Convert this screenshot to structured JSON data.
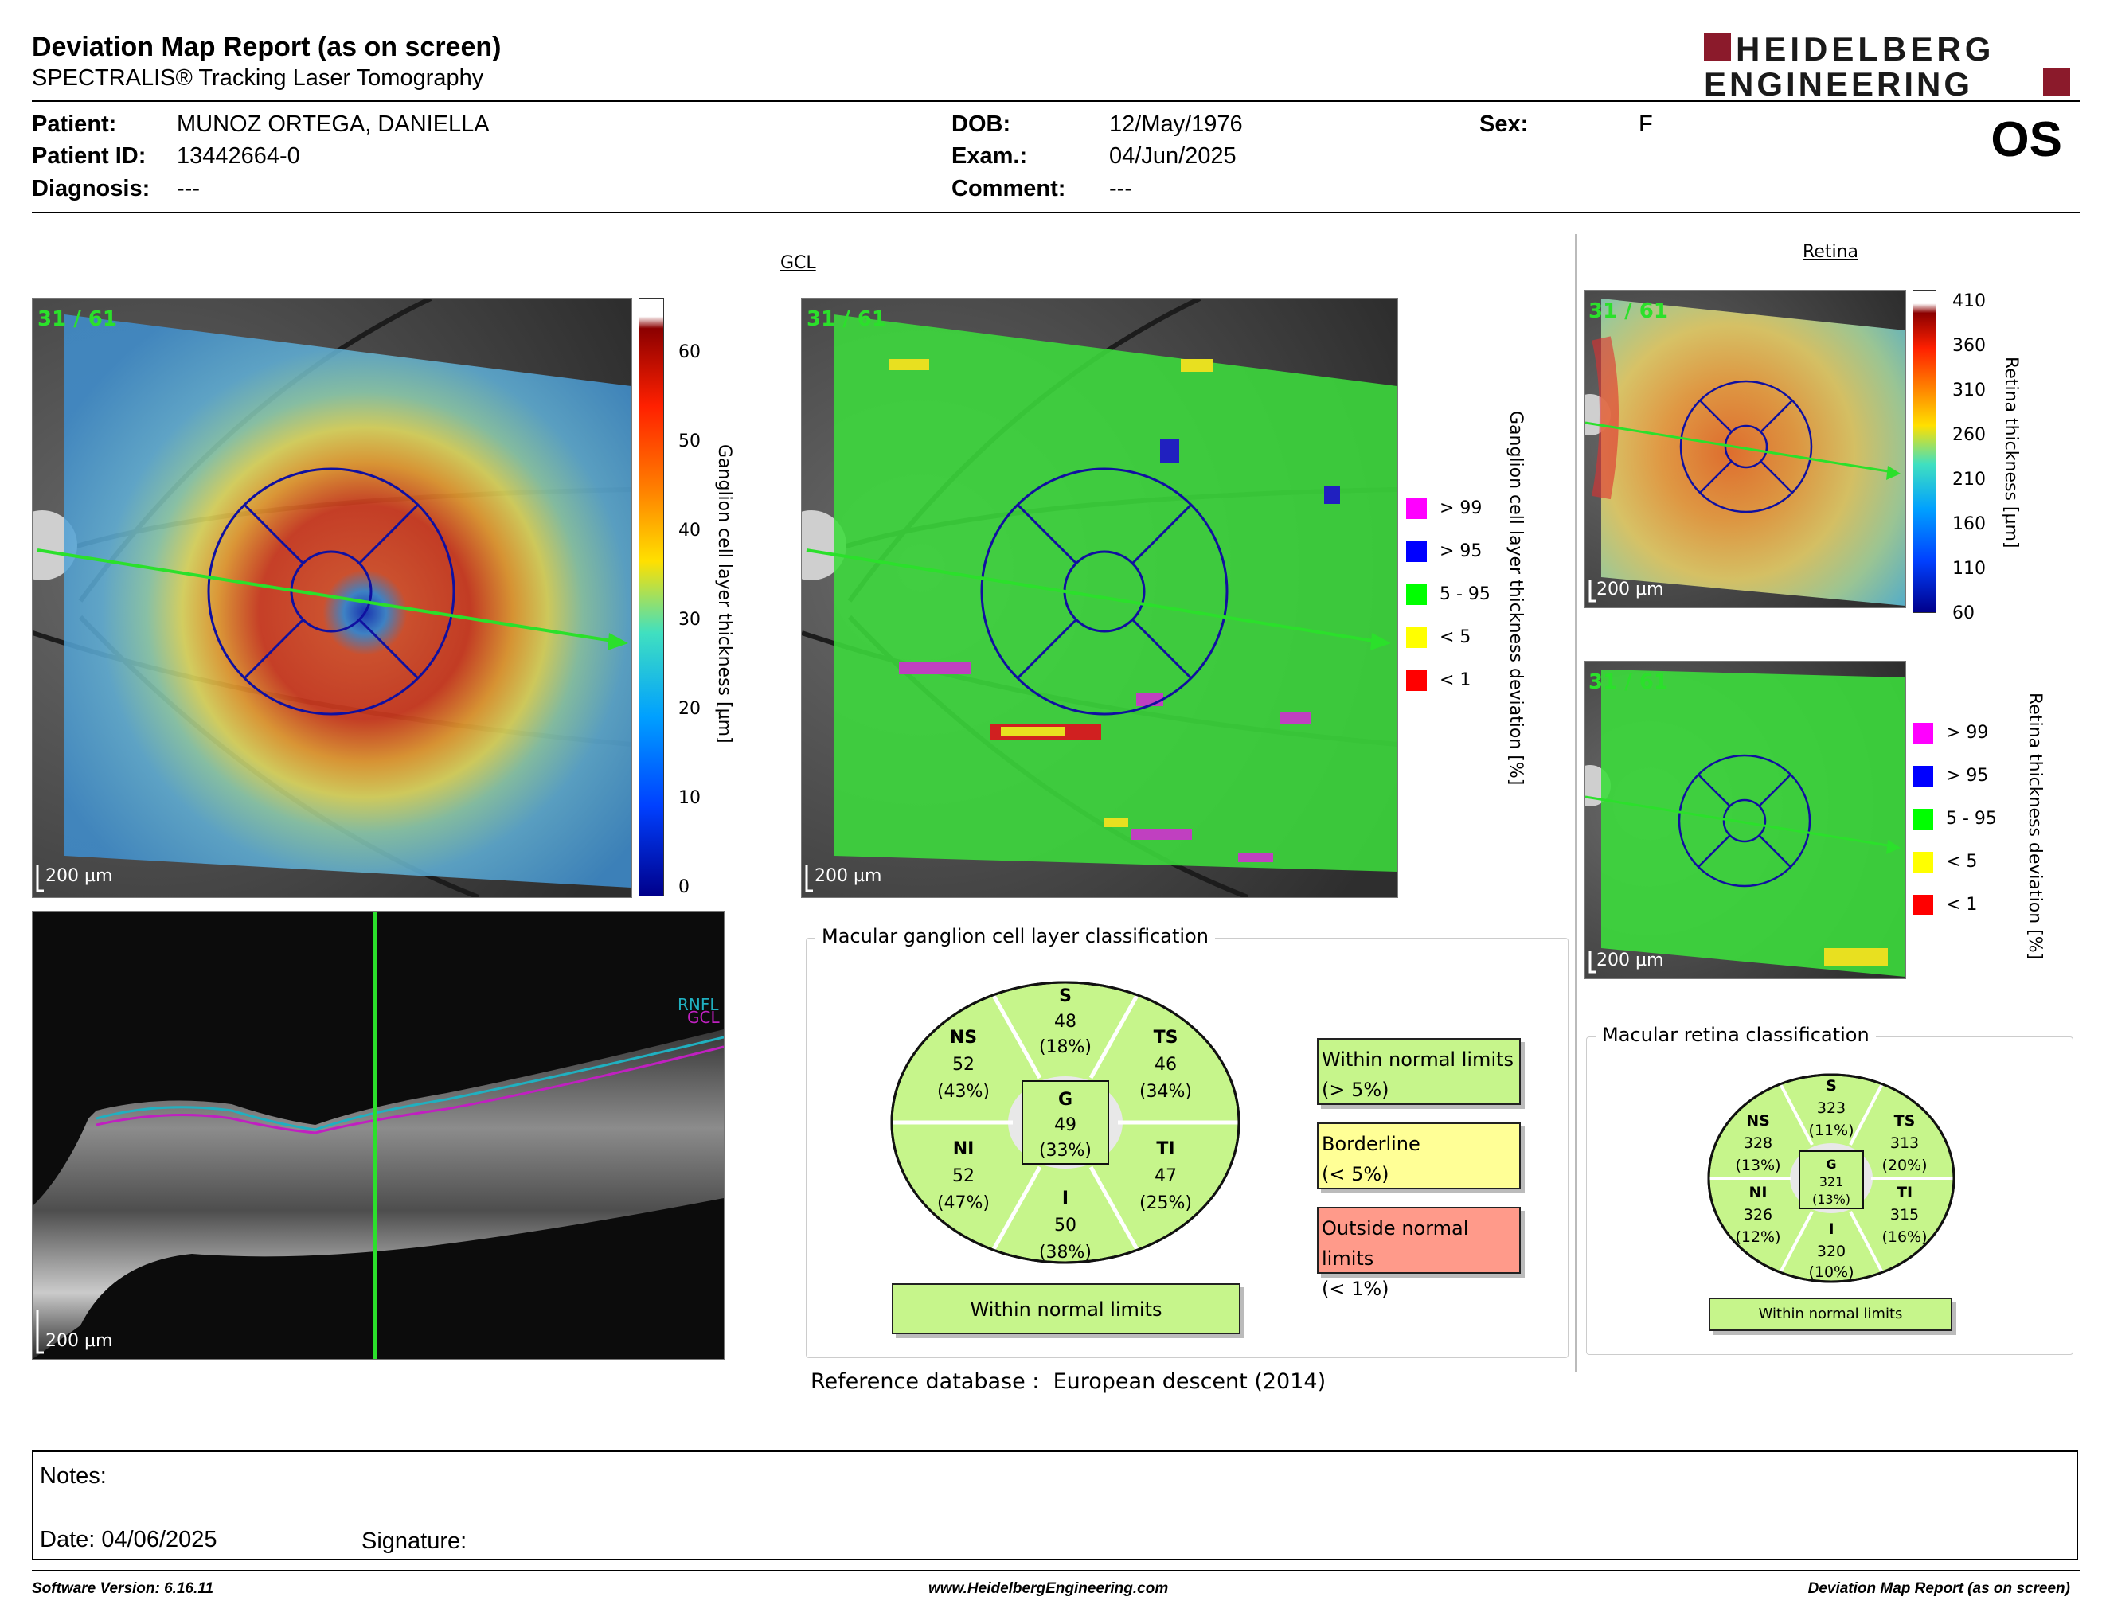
{
  "header": {
    "title": "Deviation Map Report (as on screen)",
    "subtitle": "SPECTRALIS® Tracking Laser Tomography",
    "logo_line1": "HEIDELBERG",
    "logo_line2": "ENGINEERING",
    "eye": "OS"
  },
  "patient": {
    "name_label": "Patient:",
    "name": "MUNOZ ORTEGA, DANIELLA",
    "id_label": "Patient ID:",
    "id": "13442664-0",
    "diagnosis_label": "Diagnosis:",
    "diagnosis": "---",
    "dob_label": "DOB:",
    "dob": "12/May/1976",
    "exam_label": "Exam.:",
    "exam": "04/Jun/2025",
    "comment_label": "Comment:",
    "comment": "---",
    "sex_label": "Sex:",
    "sex": "F"
  },
  "gcl": {
    "section_title": "GCL",
    "scan_label": "31 / 61",
    "scale_label": "200 µm",
    "thickness_axis_label": "Ganglion cell layer thickness [µm]",
    "thickness_ticks": [
      "60",
      "50",
      "40",
      "30",
      "20",
      "10",
      "0"
    ],
    "deviation_axis_label": "Ganglion cell layer thickness deviation [%]",
    "legend": [
      {
        "label": "> 99",
        "color": "#ff00ff"
      },
      {
        "label": "> 95",
        "color": "#0000ff"
      },
      {
        "label": "5 - 95",
        "color": "#00ff00"
      },
      {
        "label": "< 5",
        "color": "#ffff00"
      },
      {
        "label": "< 1",
        "color": "#ff0000"
      }
    ],
    "bscan_scale_label": "200 µm",
    "bscan_layer_labels": [
      "RNFL",
      "GCL"
    ]
  },
  "retina": {
    "section_title": "Retina",
    "scan_label": "31 / 61",
    "scale_label": "200 µm",
    "thickness_axis_label": "Retina thickness [µm]",
    "thickness_ticks": [
      "410",
      "360",
      "310",
      "260",
      "210",
      "160",
      "110",
      "60"
    ],
    "deviation_axis_label": "Retina thickness deviation [%]",
    "legend": [
      {
        "label": "> 99",
        "color": "#ff00ff"
      },
      {
        "label": "> 95",
        "color": "#0000ff"
      },
      {
        "label": "5 - 95",
        "color": "#00ff00"
      },
      {
        "label": "< 5",
        "color": "#ffff00"
      },
      {
        "label": "< 1",
        "color": "#ff0000"
      }
    ]
  },
  "gcl_classification": {
    "title": "Macular ganglion cell layer classification",
    "sectors": {
      "S": {
        "name": "S",
        "value": "48",
        "pct": "(18%)"
      },
      "NS": {
        "name": "NS",
        "value": "52",
        "pct": "(43%)"
      },
      "TS": {
        "name": "TS",
        "value": "46",
        "pct": "(34%)"
      },
      "G": {
        "name": "G",
        "value": "49",
        "pct": "(33%)"
      },
      "NI": {
        "name": "NI",
        "value": "52",
        "pct": "(47%)"
      },
      "TI": {
        "name": "TI",
        "value": "47",
        "pct": "(25%)"
      },
      "I": {
        "name": "I",
        "value": "50",
        "pct": "(38%)"
      }
    },
    "result": "Within normal limits",
    "legend": [
      {
        "line1": "Within normal limits",
        "line2": "(> 5%)",
        "color": "#c6f58b"
      },
      {
        "line1": "Borderline",
        "line2": "(< 5%)",
        "color": "#ffff96"
      },
      {
        "line1": "Outside normal limits",
        "line2": "(< 1%)",
        "color": "#ff9a8a"
      }
    ],
    "reference_label": "Reference database :",
    "reference_value": "European descent (2014)"
  },
  "retina_classification": {
    "title": "Macular retina classification",
    "sectors": {
      "S": {
        "name": "S",
        "value": "323",
        "pct": "(11%)"
      },
      "NS": {
        "name": "NS",
        "value": "328",
        "pct": "(13%)"
      },
      "TS": {
        "name": "TS",
        "value": "313",
        "pct": "(20%)"
      },
      "G": {
        "name": "G",
        "value": "321",
        "pct": "(13%)"
      },
      "NI": {
        "name": "NI",
        "value": "326",
        "pct": "(12%)"
      },
      "TI": {
        "name": "TI",
        "value": "315",
        "pct": "(16%)"
      },
      "I": {
        "name": "I",
        "value": "320",
        "pct": "(10%)"
      }
    },
    "result": "Within normal limits"
  },
  "notes": {
    "notes_label": "Notes:",
    "date_label": "Date: 04/06/2025",
    "signature_label": "Signature:"
  },
  "footer": {
    "software": "Software Version: 6.16.11",
    "website": "www.HeidelbergEngineering.com",
    "report": "Deviation Map Report (as on screen)"
  }
}
